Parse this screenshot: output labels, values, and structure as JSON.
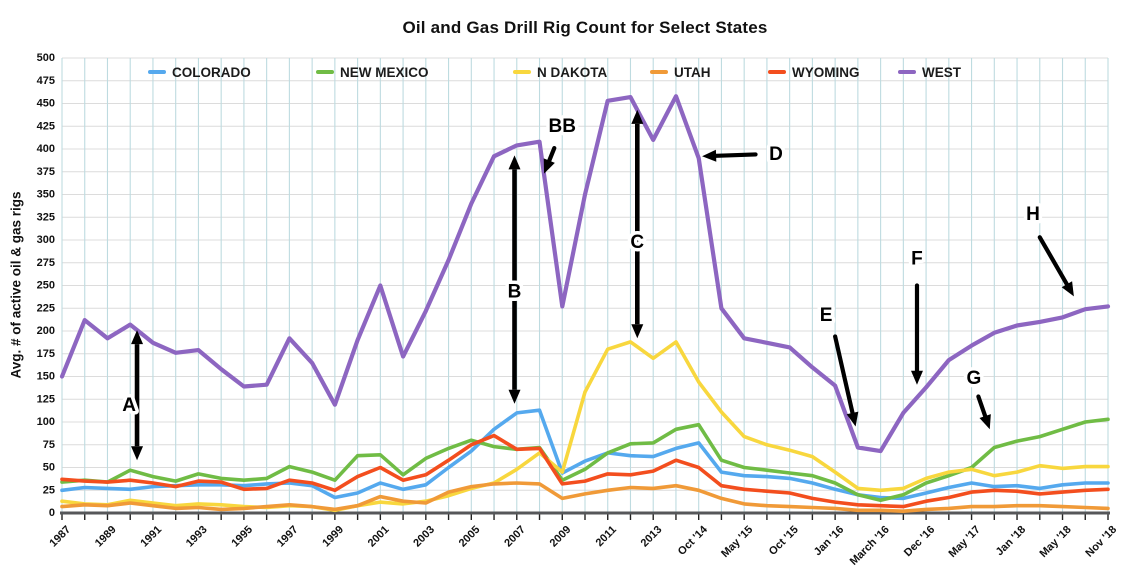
{
  "title": "Oil and Gas Drill Rig Count for Select States",
  "y_axis_title": "Avg. # of active oil & gas rigs",
  "chart_data": {
    "type": "line",
    "title": "Oil and Gas Drill Rig Count for Select States",
    "xlabel": "",
    "ylabel": "Avg. # of active oil & gas rigs",
    "ylim": [
      0,
      500
    ],
    "ytick_step": 25,
    "grid": {
      "vertical_color": "#bedbe0",
      "horizontal_color": "#dcdcdc",
      "axis_color": "#56575a",
      "tick_color": "#222222"
    },
    "legend_position": "top-inside",
    "categories": [
      "1987",
      "",
      "1989",
      "",
      "1991",
      "",
      "1993",
      "",
      "1995",
      "",
      "1997",
      "",
      "1999",
      "",
      "2001",
      "",
      "2003",
      "",
      "2005",
      "",
      "2007",
      "",
      "2009",
      "",
      "2011",
      "",
      "2013",
      "",
      "Oct '14",
      "",
      "May '15",
      "",
      "Oct '15",
      "",
      "Jan '16",
      "",
      "March '16",
      "",
      "Dec '16",
      "",
      "May '17",
      "",
      "Jan '18",
      "",
      "May '18",
      "",
      "Nov '18"
    ],
    "series": [
      {
        "name": "COLORADO",
        "color": "#55a9ee",
        "values": [
          25,
          28,
          27,
          26,
          29,
          30,
          31,
          31,
          30,
          32,
          33,
          30,
          17,
          22,
          33,
          26,
          31,
          50,
          68,
          92,
          110,
          113,
          44,
          57,
          66,
          63,
          62,
          71,
          77,
          45,
          41,
          40,
          38,
          33,
          26,
          20,
          17,
          16,
          22,
          28,
          33,
          29,
          30,
          27,
          31,
          33,
          33
        ]
      },
      {
        "name": "NEW MEXICO",
        "color": "#70bc45",
        "values": [
          34,
          36,
          34,
          47,
          40,
          35,
          43,
          38,
          36,
          38,
          51,
          45,
          36,
          63,
          64,
          42,
          60,
          71,
          80,
          73,
          70,
          72,
          36,
          48,
          66,
          76,
          77,
          92,
          97,
          58,
          50,
          47,
          44,
          41,
          33,
          20,
          14,
          20,
          33,
          41,
          50,
          72,
          79,
          84,
          92,
          100,
          103
        ]
      },
      {
        "name": "N DAKOTA",
        "color": "#f8d73e",
        "values": [
          13,
          10,
          9,
          14,
          11,
          8,
          10,
          9,
          7,
          6,
          8,
          7,
          3,
          8,
          12,
          10,
          13,
          19,
          27,
          33,
          48,
          66,
          45,
          133,
          180,
          188,
          170,
          188,
          144,
          111,
          84,
          75,
          69,
          62,
          45,
          27,
          25,
          27,
          38,
          45,
          48,
          41,
          45,
          52,
          49,
          51,
          51
        ]
      },
      {
        "name": "UTAH",
        "color": "#f09a38",
        "values": [
          7,
          9,
          8,
          11,
          8,
          5,
          6,
          4,
          5,
          7,
          9,
          7,
          4,
          8,
          18,
          13,
          11,
          23,
          29,
          32,
          33,
          32,
          16,
          21,
          25,
          28,
          27,
          30,
          25,
          16,
          10,
          8,
          7,
          6,
          5,
          3,
          3,
          2,
          4,
          5,
          7,
          7,
          8,
          8,
          7,
          6,
          5
        ]
      },
      {
        "name": "WYOMING",
        "color": "#f34e1e",
        "values": [
          37,
          35,
          34,
          36,
          33,
          29,
          35,
          34,
          26,
          27,
          36,
          33,
          25,
          40,
          50,
          36,
          42,
          58,
          75,
          85,
          70,
          71,
          32,
          35,
          43,
          42,
          46,
          58,
          50,
          30,
          26,
          24,
          22,
          16,
          12,
          9,
          8,
          7,
          13,
          17,
          23,
          25,
          24,
          21,
          23,
          25,
          26
        ]
      },
      {
        "name": "WEST",
        "color": "#8d66c1",
        "values": [
          150,
          212,
          192,
          207,
          187,
          176,
          179,
          158,
          139,
          141,
          192,
          165,
          119,
          190,
          250,
          172,
          222,
          278,
          340,
          392,
          404,
          408,
          227,
          350,
          453,
          457,
          410,
          458,
          390,
          225,
          192,
          187,
          182,
          160,
          140,
          72,
          68,
          110,
          138,
          168,
          184,
          198,
          206,
          210,
          215,
          224,
          227
        ]
      }
    ],
    "annotations": [
      {
        "id": "A",
        "kind": "double-arrow",
        "xi": 3.3,
        "v1": 58,
        "v2": 201,
        "label_xi": 2.95,
        "label_v": 118
      },
      {
        "id": "B",
        "kind": "double-arrow",
        "xi": 19.9,
        "v1": 120,
        "v2": 393,
        "label_xi": 19.9,
        "label_v": 243
      },
      {
        "id": "C",
        "kind": "double-arrow",
        "xi": 25.3,
        "v1": 192,
        "v2": 443,
        "label_xi": 25.3,
        "label_v": 297
      },
      {
        "id": "BB",
        "kind": "arrow",
        "tail": [
          21.65,
          401
        ],
        "tip": [
          21.2,
          373
        ],
        "label_xi": 22.0,
        "label_v": 425
      },
      {
        "id": "D",
        "kind": "arrow",
        "tail": [
          30.5,
          394
        ],
        "tip": [
          28.15,
          392
        ],
        "label_xi": 31.4,
        "label_v": 394
      },
      {
        "id": "E",
        "kind": "arrow",
        "tail": [
          34.0,
          194
        ],
        "tip": [
          34.9,
          95
        ],
        "label_xi": 33.6,
        "label_v": 217
      },
      {
        "id": "F",
        "kind": "arrow",
        "tail": [
          37.6,
          250
        ],
        "tip": [
          37.6,
          141
        ],
        "label_xi": 37.6,
        "label_v": 279
      },
      {
        "id": "G",
        "kind": "arrow",
        "tail": [
          40.3,
          128
        ],
        "tip": [
          40.8,
          92
        ],
        "label_xi": 40.1,
        "label_v": 148
      },
      {
        "id": "H",
        "kind": "arrow",
        "tail": [
          43.0,
          303
        ],
        "tip": [
          44.5,
          238
        ],
        "label_xi": 42.7,
        "label_v": 328
      }
    ]
  }
}
